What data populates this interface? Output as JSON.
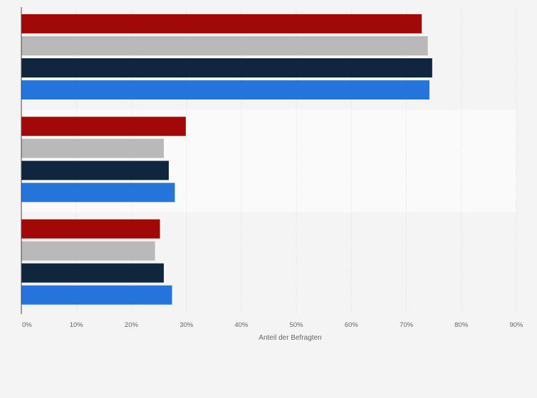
{
  "chart_data": {
    "type": "bar",
    "orientation": "horizontal",
    "xlabel": "Anteil der Befragten",
    "xlim": [
      0,
      90
    ],
    "x_ticks": [
      "0%",
      "10%",
      "20%",
      "30%",
      "40%",
      "50%",
      "60%",
      "70%",
      "80%",
      "90%"
    ],
    "grid": true,
    "legend": "none",
    "category_count": 3,
    "series": [
      {
        "color": "#a30808",
        "values": [
          72.8,
          29.9,
          25.2
        ]
      },
      {
        "color": "#b9b9b9",
        "values": [
          73.9,
          25.9,
          24.3
        ]
      },
      {
        "color": "#10263e",
        "values": [
          74.7,
          26.8,
          25.9
        ]
      },
      {
        "color": "#2574db",
        "values": [
          74.2,
          27.9,
          27.4
        ]
      }
    ]
  },
  "colors": {
    "background": "#f4f4f4",
    "band_highlight": "#fafafa",
    "gridline": "#dcdcdc",
    "axis": "#444444",
    "tick_text": "#666666"
  }
}
